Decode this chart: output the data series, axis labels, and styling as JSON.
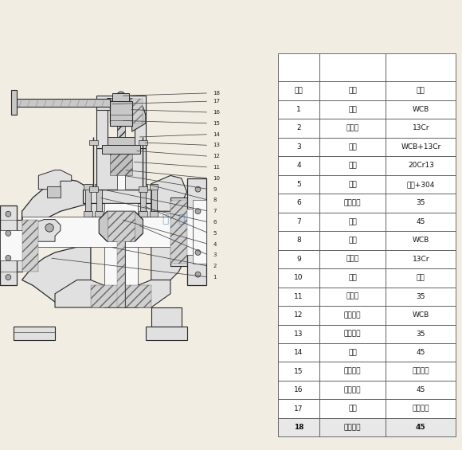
{
  "table_data": [
    [
      "18",
      "锁紧螺母",
      "45"
    ],
    [
      "17",
      "手轮",
      "球墨铸铁"
    ],
    [
      "16",
      "压盖螺母",
      "45"
    ],
    [
      "15",
      "阀杆螺母",
      "球墨铸铁"
    ],
    [
      "14",
      "螺母",
      "45"
    ],
    [
      "13",
      "活节螺栓",
      "35"
    ],
    [
      "12",
      "填料压板",
      "WCB"
    ],
    [
      "11",
      "圆柱销",
      "35"
    ],
    [
      "10",
      "填料",
      "石墨"
    ],
    [
      "9",
      "上密封",
      "13Cr"
    ],
    [
      "8",
      "阀盖",
      "WCB"
    ],
    [
      "7",
      "螺母",
      "45"
    ],
    [
      "6",
      "双头螺栓",
      "35"
    ],
    [
      "5",
      "垫片",
      "石墨+304"
    ],
    [
      "4",
      "阀杆",
      "20Cr13"
    ],
    [
      "3",
      "闸板",
      "WCB+13Cr"
    ],
    [
      "2",
      "密封面",
      "13Cr"
    ],
    [
      "1",
      "阀体",
      "WCB"
    ],
    [
      "序号",
      "名称",
      "材料"
    ]
  ],
  "bg_color": "#f2ede3",
  "line_color": "#2a2a2a",
  "table_line_color": "#555555",
  "watermark_color_blue": "#3a6fa8",
  "watermark_color_red": "#cc3333"
}
